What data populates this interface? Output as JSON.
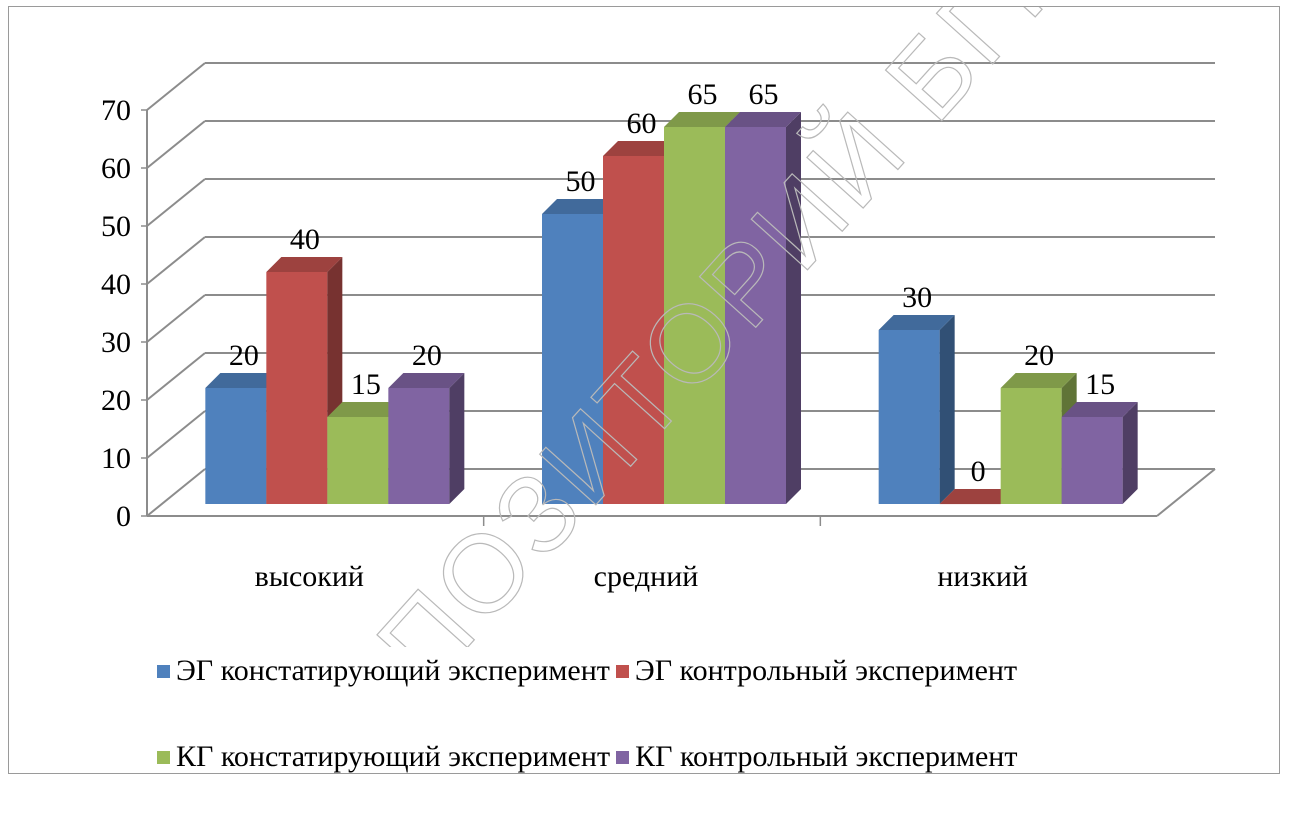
{
  "chart_data": {
    "type": "bar",
    "categories": [
      "высокий",
      "средний",
      "низкий"
    ],
    "series": [
      {
        "name": "ЭГ констатирующий эксперимент",
        "values": [
          20,
          50,
          30
        ],
        "color": "#4f81bd"
      },
      {
        "name": "ЭГ контрольный эксперимент",
        "values": [
          40,
          60,
          0
        ],
        "color": "#c0504d"
      },
      {
        "name": "КГ констатирующий эксперимент",
        "values": [
          15,
          65,
          20
        ],
        "color": "#9bbb59"
      },
      {
        "name": "КГ контрольный эксперимент",
        "values": [
          20,
          65,
          15
        ],
        "color": "#8064a2"
      }
    ],
    "ylim": [
      0,
      70
    ],
    "yticks": [
      "0",
      "10",
      "20",
      "30",
      "40",
      "50",
      "60",
      "70"
    ],
    "grid": true,
    "legend": "bottom",
    "style": "3d-clustered-column"
  },
  "watermark": "РЕПОЗИТОРИЙ БГПУ"
}
